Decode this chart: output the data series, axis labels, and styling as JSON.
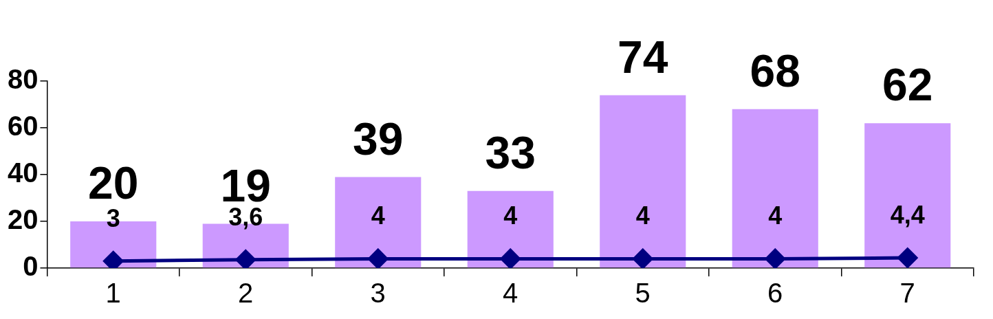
{
  "chart_data": {
    "type": "bar",
    "categories": [
      "1",
      "2",
      "3",
      "4",
      "5",
      "6",
      "7"
    ],
    "series": [
      {
        "color": "#cc99ff",
        "values": [
          20,
          19,
          39,
          33,
          74,
          68,
          62
        ],
        "value_labels": [
          "20",
          "19",
          "39",
          "33",
          "74",
          "68",
          "62"
        ]
      },
      {
        "type": "line",
        "color": "#000080",
        "values": [
          3,
          3.6,
          4,
          4,
          4,
          4,
          4.4
        ],
        "value_labels": [
          "3",
          "3,6",
          "4",
          "4",
          "4",
          "4",
          "4,4"
        ]
      }
    ],
    "ylim": [
      0,
      80
    ],
    "yticks": [
      0,
      20,
      40,
      60,
      80
    ],
    "grid": false,
    "legend": false,
    "marker": "diamond",
    "line_style": "solid"
  }
}
